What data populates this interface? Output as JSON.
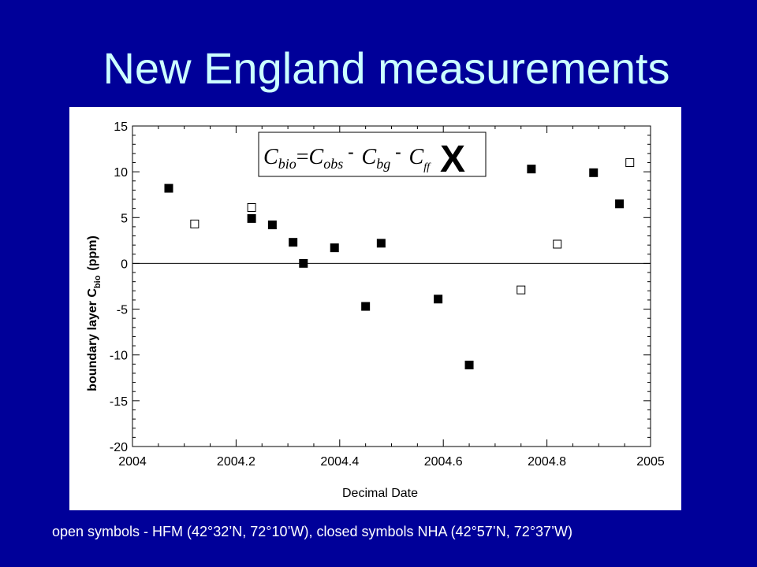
{
  "slide": {
    "title": "New England measurements",
    "caption": "open symbols - HFM (42°32’N, 72°10’W), closed symbols NHA (42°57’N, 72°37’W)"
  },
  "equation": {
    "c1": "C",
    "s1": "bio",
    "eq": "=",
    "c2": "C",
    "s2": "obs",
    "m1": "-",
    "c3": "C",
    "s3": "bg",
    "m2": "-",
    "c4": "C",
    "s4": "ff",
    "overlay": "X"
  },
  "chart_data": {
    "type": "scatter",
    "xlabel": "Decimal Date",
    "ylabel": "boundary layer C",
    "ylabel_sub": "bio",
    "ylabel_unit": "(ppm)",
    "xlim": [
      2004,
      2005
    ],
    "ylim": [
      -20,
      15
    ],
    "xticks": [
      2004,
      2004.2,
      2004.4,
      2004.6,
      2004.8,
      2005
    ],
    "xtick_labels": [
      "2004",
      "2004.2",
      "2004.4",
      "2004.6",
      "2004.8",
      "2005"
    ],
    "yticks": [
      -20,
      -15,
      -10,
      -5,
      0,
      5,
      10,
      15
    ],
    "ytick_labels": [
      "-20",
      "-15",
      "-10",
      "-5",
      "0",
      "5",
      "10",
      "15"
    ],
    "zero_line": true,
    "grid": false,
    "series": [
      {
        "marker": "open-square",
        "color": "#000000",
        "x": [
          2004.12,
          2004.23,
          2004.75,
          2004.82,
          2004.96
        ],
        "y": [
          4.3,
          6.1,
          -2.9,
          2.1,
          11.0
        ]
      },
      {
        "marker": "filled-square",
        "color": "#000000",
        "x": [
          2004.07,
          2004.23,
          2004.27,
          2004.31,
          2004.33,
          2004.39,
          2004.45,
          2004.48,
          2004.59,
          2004.65,
          2004.77,
          2004.89,
          2004.94
        ],
        "y": [
          8.2,
          4.9,
          4.2,
          2.3,
          0.0,
          1.7,
          -4.7,
          2.2,
          -3.9,
          -11.1,
          10.3,
          9.9,
          6.5
        ]
      }
    ]
  }
}
